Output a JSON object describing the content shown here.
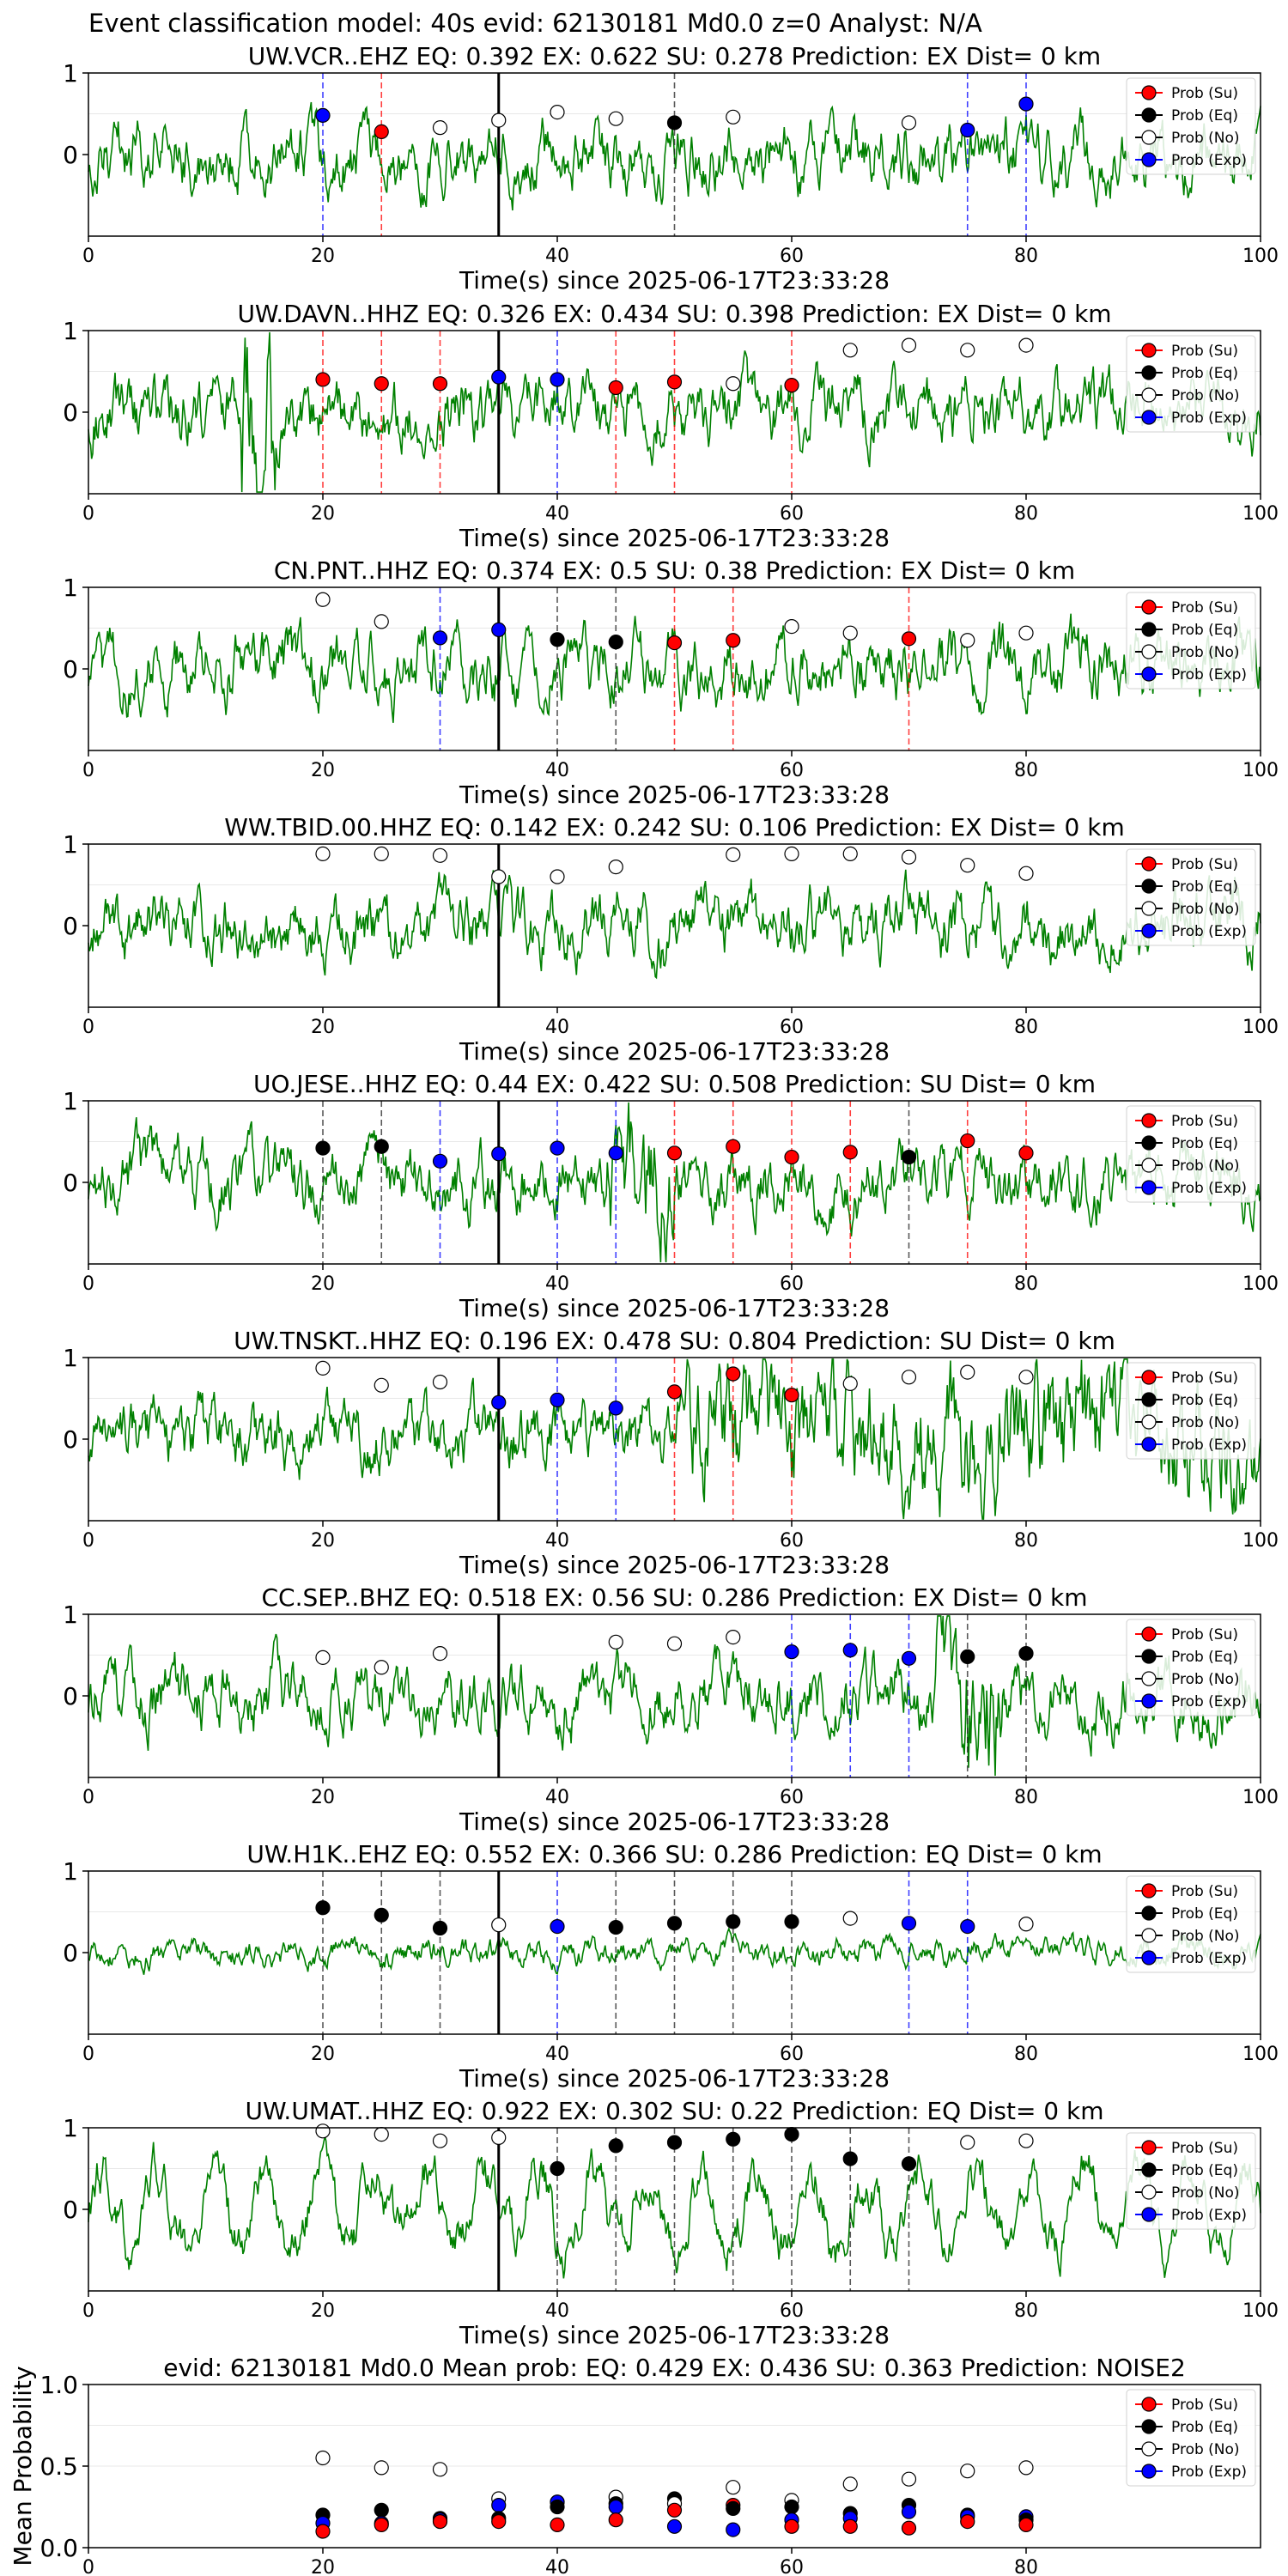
{
  "suptitle": "Event classification model: 40s evid: 62130181 Md0.0 z=0 Analyst: N/A",
  "colors": {
    "trace": "#008000",
    "su": "#ff0000",
    "eq": "#000000",
    "no": "#ffffff",
    "exp": "#0000ff"
  },
  "legend": [
    "Prob (Su)",
    "Prob (Eq)",
    "Prob (No)",
    "Prob (Exp)"
  ],
  "chart_data": [
    {
      "type": "scatter",
      "title": "UW.VCR..EHZ   EQ: 0.392  EX: 0.622  SU: 0.278   Prediction: EX    Dist= 0 km",
      "xlabel": "Time(s) since 2025-06-17T23:33:28",
      "ylabel": "",
      "xlim": [
        0,
        100
      ],
      "ylim": [
        -1,
        1
      ],
      "xticks": [
        0,
        20,
        40,
        60,
        80,
        100
      ],
      "yticks": [
        "1",
        "0"
      ],
      "event_line_x": 35,
      "trace": "green waveform",
      "legend_position": "upper right",
      "points": [
        {
          "x": 20,
          "y": 0.48,
          "class": "exp"
        },
        {
          "x": 25,
          "y": 0.28,
          "class": "su"
        },
        {
          "x": 30,
          "y": 0.33,
          "class": "no"
        },
        {
          "x": 35,
          "y": 0.42,
          "class": "no"
        },
        {
          "x": 40,
          "y": 0.52,
          "class": "no"
        },
        {
          "x": 45,
          "y": 0.44,
          "class": "no"
        },
        {
          "x": 50,
          "y": 0.39,
          "class": "eq"
        },
        {
          "x": 55,
          "y": 0.46,
          "class": "no"
        },
        {
          "x": 70,
          "y": 0.39,
          "class": "no"
        },
        {
          "x": 75,
          "y": 0.3,
          "class": "exp"
        },
        {
          "x": 80,
          "y": 0.62,
          "class": "exp"
        }
      ]
    },
    {
      "type": "scatter",
      "title": "UW.DAVN..HHZ   EQ: 0.326  EX: 0.434  SU: 0.398   Prediction: EX    Dist= 0 km",
      "xlabel": "Time(s) since 2025-06-17T23:33:28",
      "ylabel": "",
      "xlim": [
        0,
        100
      ],
      "ylim": [
        -1,
        1
      ],
      "xticks": [
        0,
        20,
        40,
        60,
        80,
        100
      ],
      "yticks": [
        "1",
        "0"
      ],
      "event_line_x": 35,
      "trace": "green waveform",
      "legend_position": "upper right",
      "points": [
        {
          "x": 20,
          "y": 0.4,
          "class": "su"
        },
        {
          "x": 25,
          "y": 0.35,
          "class": "su"
        },
        {
          "x": 30,
          "y": 0.35,
          "class": "su"
        },
        {
          "x": 35,
          "y": 0.43,
          "class": "exp"
        },
        {
          "x": 40,
          "y": 0.4,
          "class": "exp"
        },
        {
          "x": 45,
          "y": 0.3,
          "class": "su"
        },
        {
          "x": 50,
          "y": 0.37,
          "class": "su"
        },
        {
          "x": 55,
          "y": 0.35,
          "class": "no"
        },
        {
          "x": 60,
          "y": 0.33,
          "class": "su"
        },
        {
          "x": 65,
          "y": 0.76,
          "class": "no"
        },
        {
          "x": 70,
          "y": 0.82,
          "class": "no"
        },
        {
          "x": 75,
          "y": 0.76,
          "class": "no"
        },
        {
          "x": 80,
          "y": 0.82,
          "class": "no"
        }
      ]
    },
    {
      "type": "scatter",
      "title": "CN.PNT..HHZ   EQ: 0.374  EX: 0.5  SU: 0.38   Prediction: EX    Dist= 0 km",
      "xlabel": "Time(s) since 2025-06-17T23:33:28",
      "ylabel": "",
      "xlim": [
        0,
        100
      ],
      "ylim": [
        -1,
        1
      ],
      "xticks": [
        0,
        20,
        40,
        60,
        80,
        100
      ],
      "yticks": [
        "1",
        "0"
      ],
      "event_line_x": 35,
      "trace": "green waveform",
      "legend_position": "upper right",
      "points": [
        {
          "x": 20,
          "y": 0.85,
          "class": "no"
        },
        {
          "x": 25,
          "y": 0.58,
          "class": "no"
        },
        {
          "x": 30,
          "y": 0.38,
          "class": "exp"
        },
        {
          "x": 35,
          "y": 0.48,
          "class": "exp"
        },
        {
          "x": 40,
          "y": 0.36,
          "class": "eq"
        },
        {
          "x": 45,
          "y": 0.33,
          "class": "eq"
        },
        {
          "x": 50,
          "y": 0.32,
          "class": "su"
        },
        {
          "x": 55,
          "y": 0.35,
          "class": "su"
        },
        {
          "x": 60,
          "y": 0.52,
          "class": "no"
        },
        {
          "x": 65,
          "y": 0.44,
          "class": "no"
        },
        {
          "x": 70,
          "y": 0.37,
          "class": "su"
        },
        {
          "x": 75,
          "y": 0.35,
          "class": "no"
        },
        {
          "x": 80,
          "y": 0.44,
          "class": "no"
        }
      ]
    },
    {
      "type": "scatter",
      "title": "WW.TBID.00.HHZ   EQ: 0.142  EX: 0.242  SU: 0.106   Prediction: EX    Dist= 0 km",
      "xlabel": "Time(s) since 2025-06-17T23:33:28",
      "ylabel": "",
      "xlim": [
        0,
        100
      ],
      "ylim": [
        -1,
        1
      ],
      "xticks": [
        0,
        20,
        40,
        60,
        80,
        100
      ],
      "yticks": [
        "1",
        "0"
      ],
      "event_line_x": 35,
      "trace": "green waveform",
      "legend_position": "upper right",
      "points": [
        {
          "x": 20,
          "y": 0.88,
          "class": "no"
        },
        {
          "x": 25,
          "y": 0.88,
          "class": "no"
        },
        {
          "x": 30,
          "y": 0.86,
          "class": "no"
        },
        {
          "x": 35,
          "y": 0.6,
          "class": "no"
        },
        {
          "x": 40,
          "y": 0.6,
          "class": "no"
        },
        {
          "x": 45,
          "y": 0.72,
          "class": "no"
        },
        {
          "x": 55,
          "y": 0.87,
          "class": "no"
        },
        {
          "x": 60,
          "y": 0.88,
          "class": "no"
        },
        {
          "x": 65,
          "y": 0.88,
          "class": "no"
        },
        {
          "x": 70,
          "y": 0.84,
          "class": "no"
        },
        {
          "x": 75,
          "y": 0.74,
          "class": "no"
        },
        {
          "x": 80,
          "y": 0.64,
          "class": "no"
        }
      ]
    },
    {
      "type": "scatter",
      "title": "UO.JESE..HHZ   EQ: 0.44  EX: 0.422  SU: 0.508   Prediction: SU    Dist= 0 km",
      "xlabel": "Time(s) since 2025-06-17T23:33:28",
      "ylabel": "",
      "xlim": [
        0,
        100
      ],
      "ylim": [
        -1,
        1
      ],
      "xticks": [
        0,
        20,
        40,
        60,
        80,
        100
      ],
      "yticks": [
        "1",
        "0"
      ],
      "event_line_x": 35,
      "trace": "green waveform",
      "legend_position": "upper right",
      "points": [
        {
          "x": 20,
          "y": 0.42,
          "class": "eq"
        },
        {
          "x": 25,
          "y": 0.44,
          "class": "eq"
        },
        {
          "x": 30,
          "y": 0.26,
          "class": "exp"
        },
        {
          "x": 35,
          "y": 0.35,
          "class": "exp"
        },
        {
          "x": 40,
          "y": 0.42,
          "class": "exp"
        },
        {
          "x": 45,
          "y": 0.36,
          "class": "exp"
        },
        {
          "x": 50,
          "y": 0.36,
          "class": "su"
        },
        {
          "x": 55,
          "y": 0.44,
          "class": "su"
        },
        {
          "x": 60,
          "y": 0.31,
          "class": "su"
        },
        {
          "x": 65,
          "y": 0.37,
          "class": "su"
        },
        {
          "x": 70,
          "y": 0.31,
          "class": "eq"
        },
        {
          "x": 75,
          "y": 0.51,
          "class": "su"
        },
        {
          "x": 80,
          "y": 0.36,
          "class": "su"
        }
      ]
    },
    {
      "type": "scatter",
      "title": "UW.TNSKT..HHZ   EQ: 0.196  EX: 0.478  SU: 0.804   Prediction: SU    Dist= 0 km",
      "xlabel": "Time(s) since 2025-06-17T23:33:28",
      "ylabel": "",
      "xlim": [
        0,
        100
      ],
      "ylim": [
        -1,
        1
      ],
      "xticks": [
        0,
        20,
        40,
        60,
        80,
        100
      ],
      "yticks": [
        "1",
        "0"
      ],
      "event_line_x": 35,
      "trace": "green waveform",
      "legend_position": "upper right",
      "points": [
        {
          "x": 20,
          "y": 0.87,
          "class": "no"
        },
        {
          "x": 25,
          "y": 0.66,
          "class": "no"
        },
        {
          "x": 30,
          "y": 0.7,
          "class": "no"
        },
        {
          "x": 35,
          "y": 0.45,
          "class": "exp"
        },
        {
          "x": 40,
          "y": 0.48,
          "class": "exp"
        },
        {
          "x": 45,
          "y": 0.38,
          "class": "exp"
        },
        {
          "x": 50,
          "y": 0.58,
          "class": "su"
        },
        {
          "x": 55,
          "y": 0.8,
          "class": "su"
        },
        {
          "x": 60,
          "y": 0.54,
          "class": "su"
        },
        {
          "x": 65,
          "y": 0.68,
          "class": "no"
        },
        {
          "x": 70,
          "y": 0.76,
          "class": "no"
        },
        {
          "x": 75,
          "y": 0.82,
          "class": "no"
        },
        {
          "x": 80,
          "y": 0.76,
          "class": "no"
        }
      ]
    },
    {
      "type": "scatter",
      "title": "CC.SEP..BHZ   EQ: 0.518  EX: 0.56  SU: 0.286   Prediction: EX    Dist= 0 km",
      "xlabel": "Time(s) since 2025-06-17T23:33:28",
      "ylabel": "",
      "xlim": [
        0,
        100
      ],
      "ylim": [
        -1,
        1
      ],
      "xticks": [
        0,
        20,
        40,
        60,
        80,
        100
      ],
      "yticks": [
        "1",
        "0"
      ],
      "event_line_x": 35,
      "trace": "green waveform",
      "legend_position": "upper right",
      "points": [
        {
          "x": 20,
          "y": 0.47,
          "class": "no"
        },
        {
          "x": 25,
          "y": 0.35,
          "class": "no"
        },
        {
          "x": 30,
          "y": 0.52,
          "class": "no"
        },
        {
          "x": 45,
          "y": 0.66,
          "class": "no"
        },
        {
          "x": 50,
          "y": 0.64,
          "class": "no"
        },
        {
          "x": 55,
          "y": 0.72,
          "class": "no"
        },
        {
          "x": 60,
          "y": 0.54,
          "class": "exp"
        },
        {
          "x": 65,
          "y": 0.56,
          "class": "exp"
        },
        {
          "x": 70,
          "y": 0.46,
          "class": "exp"
        },
        {
          "x": 75,
          "y": 0.48,
          "class": "eq"
        },
        {
          "x": 80,
          "y": 0.52,
          "class": "eq"
        }
      ]
    },
    {
      "type": "scatter",
      "title": "UW.H1K..EHZ   EQ: 0.552  EX: 0.366  SU: 0.286   Prediction: EQ    Dist= 0 km",
      "xlabel": "Time(s) since 2025-06-17T23:33:28",
      "ylabel": "",
      "xlim": [
        0,
        100
      ],
      "ylim": [
        -1,
        1
      ],
      "xticks": [
        0,
        20,
        40,
        60,
        80,
        100
      ],
      "yticks": [
        "1",
        "0"
      ],
      "event_line_x": 35,
      "trace": "green waveform",
      "legend_position": "upper right",
      "points": [
        {
          "x": 20,
          "y": 0.55,
          "class": "eq"
        },
        {
          "x": 25,
          "y": 0.46,
          "class": "eq"
        },
        {
          "x": 30,
          "y": 0.3,
          "class": "eq"
        },
        {
          "x": 35,
          "y": 0.34,
          "class": "no"
        },
        {
          "x": 40,
          "y": 0.32,
          "class": "exp"
        },
        {
          "x": 45,
          "y": 0.31,
          "class": "eq"
        },
        {
          "x": 50,
          "y": 0.36,
          "class": "eq"
        },
        {
          "x": 55,
          "y": 0.38,
          "class": "eq"
        },
        {
          "x": 60,
          "y": 0.38,
          "class": "eq"
        },
        {
          "x": 65,
          "y": 0.42,
          "class": "no"
        },
        {
          "x": 70,
          "y": 0.36,
          "class": "exp"
        },
        {
          "x": 75,
          "y": 0.32,
          "class": "exp"
        },
        {
          "x": 80,
          "y": 0.35,
          "class": "no"
        }
      ]
    },
    {
      "type": "scatter",
      "title": "UW.UMAT..HHZ   EQ: 0.922  EX: 0.302  SU: 0.22   Prediction: EQ    Dist= 0 km",
      "xlabel": "Time(s) since 2025-06-17T23:33:28",
      "ylabel": "",
      "xlim": [
        0,
        100
      ],
      "ylim": [
        -1,
        1
      ],
      "xticks": [
        0,
        20,
        40,
        60,
        80,
        100
      ],
      "yticks": [
        "1",
        "0"
      ],
      "event_line_x": 35,
      "trace": "green waveform",
      "legend_position": "upper right",
      "points": [
        {
          "x": 20,
          "y": 0.96,
          "class": "no"
        },
        {
          "x": 25,
          "y": 0.92,
          "class": "no"
        },
        {
          "x": 30,
          "y": 0.84,
          "class": "no"
        },
        {
          "x": 35,
          "y": 0.88,
          "class": "no"
        },
        {
          "x": 40,
          "y": 0.5,
          "class": "eq"
        },
        {
          "x": 45,
          "y": 0.78,
          "class": "eq"
        },
        {
          "x": 50,
          "y": 0.82,
          "class": "eq"
        },
        {
          "x": 55,
          "y": 0.86,
          "class": "eq"
        },
        {
          "x": 60,
          "y": 0.92,
          "class": "eq"
        },
        {
          "x": 65,
          "y": 0.62,
          "class": "eq"
        },
        {
          "x": 70,
          "y": 0.56,
          "class": "eq"
        },
        {
          "x": 75,
          "y": 0.82,
          "class": "no"
        },
        {
          "x": 80,
          "y": 0.84,
          "class": "no"
        }
      ]
    },
    {
      "type": "scatter",
      "title": "evid: 62130181  Md0.0   Mean prob:    EQ: 0.429  EX: 0.436  SU: 0.363   Prediction: NOISE2",
      "xlabel": "",
      "ylabel": "Mean Probability",
      "xlim": [
        0,
        100
      ],
      "ylim": [
        0,
        1
      ],
      "xticks": [
        0,
        20,
        40,
        60,
        80
      ],
      "yticks": [
        "1.0",
        "0.5",
        "0.0"
      ],
      "legend_position": "upper right",
      "points": [
        {
          "x": 20,
          "y": 0.55,
          "class": "no"
        },
        {
          "x": 20,
          "y": 0.2,
          "class": "eq"
        },
        {
          "x": 20,
          "y": 0.15,
          "class": "exp"
        },
        {
          "x": 20,
          "y": 0.1,
          "class": "su"
        },
        {
          "x": 25,
          "y": 0.49,
          "class": "no"
        },
        {
          "x": 25,
          "y": 0.23,
          "class": "eq"
        },
        {
          "x": 25,
          "y": 0.15,
          "class": "exp"
        },
        {
          "x": 25,
          "y": 0.14,
          "class": "su"
        },
        {
          "x": 30,
          "y": 0.48,
          "class": "no"
        },
        {
          "x": 30,
          "y": 0.18,
          "class": "eq"
        },
        {
          "x": 30,
          "y": 0.17,
          "class": "exp"
        },
        {
          "x": 30,
          "y": 0.16,
          "class": "su"
        },
        {
          "x": 35,
          "y": 0.3,
          "class": "no"
        },
        {
          "x": 35,
          "y": 0.26,
          "class": "exp"
        },
        {
          "x": 35,
          "y": 0.18,
          "class": "eq"
        },
        {
          "x": 35,
          "y": 0.16,
          "class": "su"
        },
        {
          "x": 40,
          "y": 0.28,
          "class": "no"
        },
        {
          "x": 40,
          "y": 0.28,
          "class": "exp"
        },
        {
          "x": 40,
          "y": 0.25,
          "class": "eq"
        },
        {
          "x": 40,
          "y": 0.14,
          "class": "su"
        },
        {
          "x": 45,
          "y": 0.31,
          "class": "no"
        },
        {
          "x": 45,
          "y": 0.27,
          "class": "eq"
        },
        {
          "x": 45,
          "y": 0.25,
          "class": "exp"
        },
        {
          "x": 45,
          "y": 0.17,
          "class": "su"
        },
        {
          "x": 50,
          "y": 0.3,
          "class": "eq"
        },
        {
          "x": 50,
          "y": 0.27,
          "class": "no"
        },
        {
          "x": 50,
          "y": 0.23,
          "class": "su"
        },
        {
          "x": 50,
          "y": 0.13,
          "class": "exp"
        },
        {
          "x": 55,
          "y": 0.37,
          "class": "no"
        },
        {
          "x": 55,
          "y": 0.26,
          "class": "su"
        },
        {
          "x": 55,
          "y": 0.24,
          "class": "eq"
        },
        {
          "x": 55,
          "y": 0.11,
          "class": "exp"
        },
        {
          "x": 60,
          "y": 0.29,
          "class": "no"
        },
        {
          "x": 60,
          "y": 0.25,
          "class": "eq"
        },
        {
          "x": 60,
          "y": 0.17,
          "class": "exp"
        },
        {
          "x": 60,
          "y": 0.13,
          "class": "su"
        },
        {
          "x": 65,
          "y": 0.39,
          "class": "no"
        },
        {
          "x": 65,
          "y": 0.21,
          "class": "eq"
        },
        {
          "x": 65,
          "y": 0.18,
          "class": "exp"
        },
        {
          "x": 65,
          "y": 0.13,
          "class": "su"
        },
        {
          "x": 70,
          "y": 0.42,
          "class": "no"
        },
        {
          "x": 70,
          "y": 0.26,
          "class": "eq"
        },
        {
          "x": 70,
          "y": 0.22,
          "class": "exp"
        },
        {
          "x": 70,
          "y": 0.12,
          "class": "su"
        },
        {
          "x": 75,
          "y": 0.47,
          "class": "no"
        },
        {
          "x": 75,
          "y": 0.2,
          "class": "eq"
        },
        {
          "x": 75,
          "y": 0.19,
          "class": "exp"
        },
        {
          "x": 75,
          "y": 0.16,
          "class": "su"
        },
        {
          "x": 80,
          "y": 0.49,
          "class": "no"
        },
        {
          "x": 80,
          "y": 0.19,
          "class": "exp"
        },
        {
          "x": 80,
          "y": 0.17,
          "class": "eq"
        },
        {
          "x": 80,
          "y": 0.14,
          "class": "su"
        }
      ]
    }
  ]
}
